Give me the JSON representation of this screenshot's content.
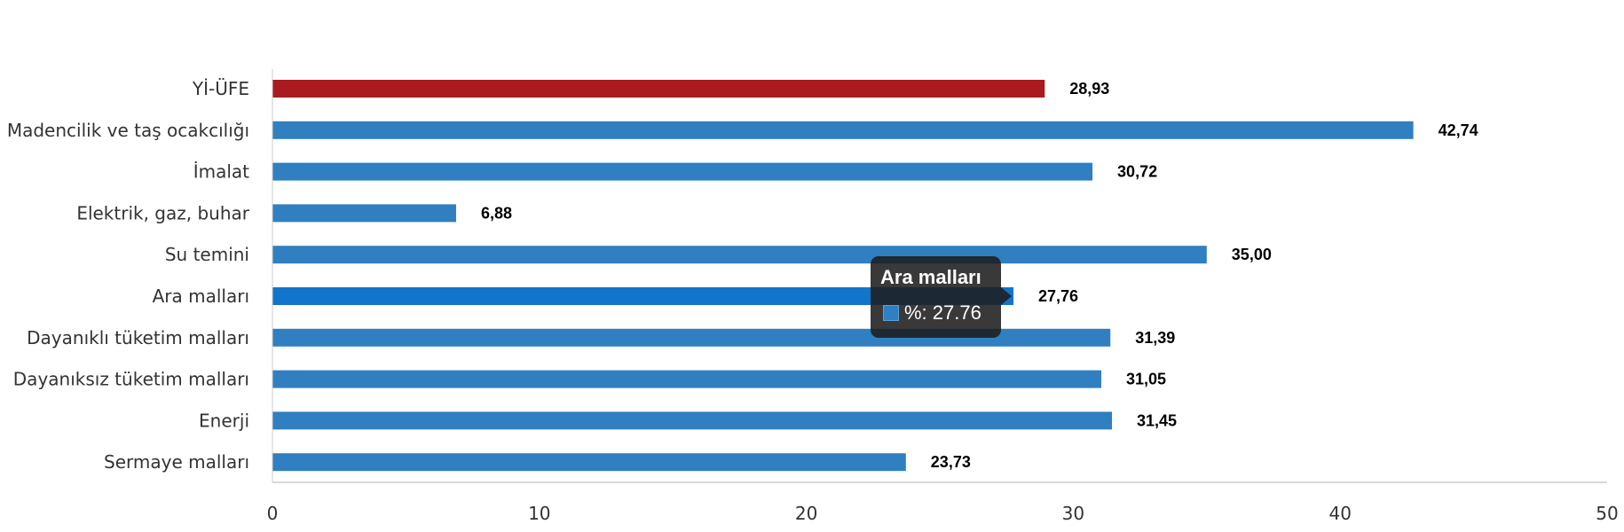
{
  "colors": {
    "bar_default": "#2f7fc1",
    "bar_highlight": "#a91b1f",
    "bar_hover": "#1175c9",
    "axis_line": "#cccccc",
    "text": "#333333"
  },
  "chart_data": {
    "type": "bar",
    "orientation": "horizontal",
    "categories": [
      "Yİ-ÜFE",
      "Madencilik ve taş ocakcılığı",
      "İmalat",
      "Elektrik, gaz, buhar",
      "Su temini",
      "Ara malları",
      "Dayanıklı tüketim malları",
      "Dayanıksız tüketim malları",
      "Enerji",
      "Sermaye malları"
    ],
    "values": [
      28.93,
      42.74,
      30.72,
      6.88,
      35.0,
      27.76,
      31.39,
      31.05,
      31.45,
      23.73
    ],
    "data_labels": [
      "28,93",
      "42,74",
      "30,72",
      "6,88",
      "35,00",
      "27,76",
      "31,39",
      "31,05",
      "31,45",
      "23,73"
    ],
    "highlight_index": 0,
    "hover_index": 5,
    "xlim": [
      0,
      50
    ],
    "x_ticks": [
      "0",
      "10",
      "20",
      "30",
      "40",
      "50"
    ],
    "grid": false,
    "legend": "none",
    "title": "",
    "xlabel": "",
    "ylabel": ""
  },
  "tooltip": {
    "title": "Ara malları",
    "value_text": "%: 27.76"
  }
}
